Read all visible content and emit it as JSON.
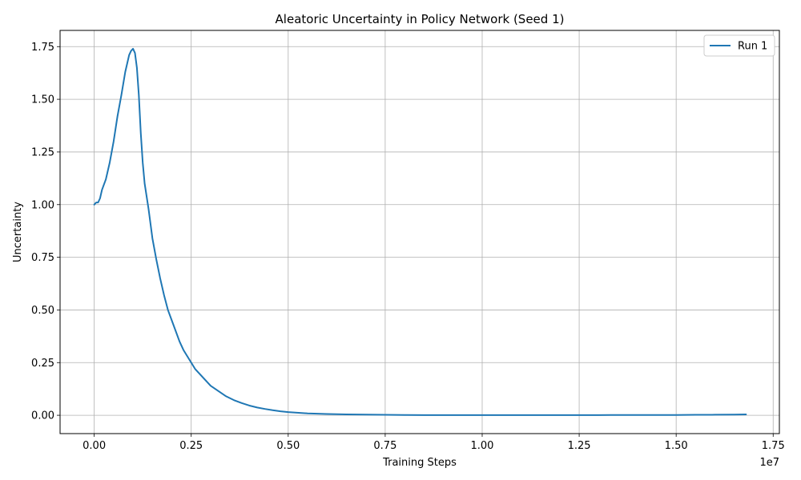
{
  "chart_data": {
    "type": "line",
    "title": "Aleatoric Uncertainty in Policy Network (Seed 1)",
    "xlabel": "Training Steps",
    "ylabel": "Uncertainty",
    "x_offset_text": "1e7",
    "xlim": [
      -880000,
      17660000
    ],
    "ylim": [
      -0.087,
      1.827
    ],
    "x_ticks": [
      0,
      2500000,
      5000000,
      7500000,
      10000000,
      12500000,
      15000000,
      17500000
    ],
    "x_tick_labels": [
      "0.00",
      "0.25",
      "0.50",
      "0.75",
      "1.00",
      "1.25",
      "1.50",
      "1.75"
    ],
    "y_ticks": [
      0,
      0.25,
      0.5,
      0.75,
      1.0,
      1.25,
      1.5,
      1.75
    ],
    "y_tick_labels": [
      "0.00",
      "0.25",
      "0.50",
      "0.75",
      "1.00",
      "1.25",
      "1.50",
      "1.75"
    ],
    "grid": true,
    "legend_position": "top-right",
    "series": [
      {
        "name": "Run 1",
        "color": "#1f77b4",
        "x": [
          0,
          50000,
          100000,
          150000,
          200000,
          300000,
          400000,
          500000,
          600000,
          700000,
          800000,
          900000,
          950000,
          1000000,
          1050000,
          1100000,
          1150000,
          1200000,
          1250000,
          1300000,
          1400000,
          1500000,
          1600000,
          1700000,
          1800000,
          1900000,
          2000000,
          2100000,
          2200000,
          2300000,
          2400000,
          2500000,
          2600000,
          2700000,
          2800000,
          2900000,
          3000000,
          3200000,
          3400000,
          3600000,
          3800000,
          4000000,
          4200000,
          4400000,
          4600000,
          4800000,
          5000000,
          5500000,
          6000000,
          6500000,
          7000000,
          7500000,
          8000000,
          8500000,
          9000000,
          9500000,
          10000000,
          11000000,
          12000000,
          13000000,
          14000000,
          15000000,
          15500000,
          16000000,
          16500000,
          16800000
        ],
        "y": [
          1.0,
          1.01,
          1.01,
          1.03,
          1.07,
          1.12,
          1.2,
          1.3,
          1.42,
          1.52,
          1.63,
          1.71,
          1.73,
          1.74,
          1.72,
          1.65,
          1.52,
          1.34,
          1.2,
          1.1,
          0.98,
          0.84,
          0.74,
          0.65,
          0.57,
          0.5,
          0.45,
          0.4,
          0.35,
          0.31,
          0.28,
          0.25,
          0.22,
          0.2,
          0.18,
          0.16,
          0.14,
          0.115,
          0.09,
          0.072,
          0.058,
          0.046,
          0.037,
          0.03,
          0.024,
          0.019,
          0.015,
          0.009,
          0.006,
          0.004,
          0.003,
          0.002,
          0.0015,
          0.001,
          0.001,
          0.001,
          0.001,
          0.001,
          0.001,
          0.001,
          0.0012,
          0.0015,
          0.002,
          0.0025,
          0.003,
          0.004
        ]
      }
    ]
  }
}
